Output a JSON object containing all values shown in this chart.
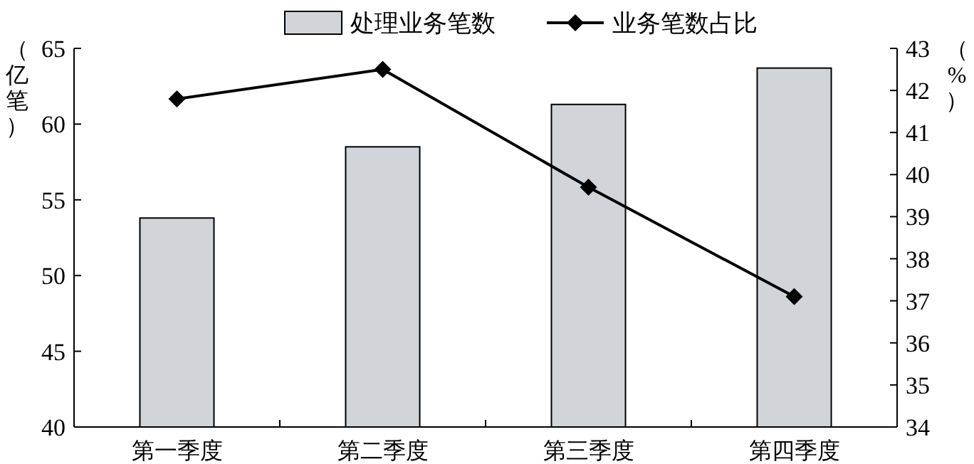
{
  "chart_data": {
    "type": "bar",
    "categories": [
      "第一季度",
      "第二季度",
      "第三季度",
      "第四季度"
    ],
    "series": [
      {
        "name": "处理业务笔数",
        "color": "#d1d5d9",
        "values": [
          53.8,
          58.5,
          61.3,
          63.7
        ]
      },
      {
        "name": "业务笔数占比",
        "type": "line",
        "axis": "y2",
        "color": "#000000",
        "values": [
          41.8,
          42.5,
          39.7,
          37.1
        ]
      }
    ],
    "ylabel": "（亿笔）",
    "y2label": "（%）",
    "ylim": [
      40,
      65
    ],
    "yticks": [
      40,
      45,
      50,
      55,
      60,
      65
    ],
    "y2lim": [
      34,
      43
    ],
    "y2ticks": [
      34,
      35,
      36,
      37,
      38,
      39,
      40,
      41,
      42,
      43
    ],
    "marker": "diamond",
    "legend": "top",
    "grid": false
  }
}
